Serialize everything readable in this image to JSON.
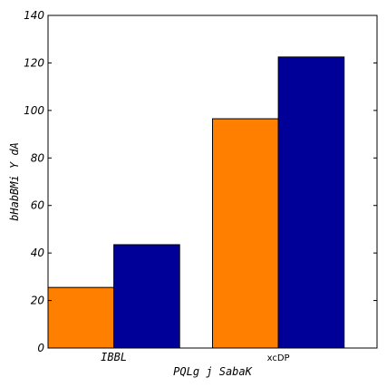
{
  "chart_data": {
    "type": "bar",
    "categories": [
      "IBBL",
      "xcDP"
    ],
    "series": [
      {
        "values": [
          25.5,
          96.5
        ],
        "color": "#ff7f00"
      },
      {
        "values": [
          43.5,
          122.5
        ],
        "color": "#000099"
      }
    ],
    "title": "",
    "xlabel": "PQLg j SabaK",
    "ylabel": "bHabBMi Y dA",
    "ylim": [
      0,
      140
    ],
    "yticks": [
      0,
      20,
      40,
      60,
      80,
      100,
      120,
      140
    ],
    "grid": false,
    "legend": "none"
  }
}
